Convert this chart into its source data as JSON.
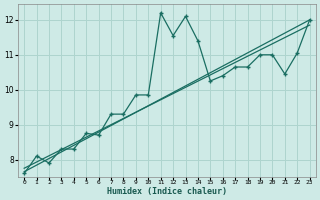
{
  "bg_color": "#ceeae6",
  "grid_color": "#aed4ce",
  "line_color": "#1a6e62",
  "line1_x": [
    0,
    1,
    2,
    3,
    4,
    5,
    6,
    7,
    8,
    9,
    10,
    11,
    12,
    13,
    14,
    15,
    16,
    17,
    18,
    19,
    20,
    21,
    22,
    23
  ],
  "line1_y": [
    7.6,
    8.1,
    7.9,
    8.3,
    8.3,
    8.75,
    8.7,
    9.3,
    9.3,
    9.85,
    9.85,
    12.2,
    11.55,
    12.1,
    11.4,
    10.25,
    10.4,
    10.65,
    10.65,
    11.0,
    11.0,
    10.45,
    11.05,
    12.0
  ],
  "line2_x": [
    0,
    23
  ],
  "line2_y": [
    7.65,
    12.0
  ],
  "line3_x": [
    0,
    23
  ],
  "line3_y": [
    7.75,
    11.85
  ],
  "xlim": [
    -0.5,
    23.5
  ],
  "ylim": [
    7.5,
    12.45
  ],
  "yticks": [
    8,
    9,
    10,
    11,
    12
  ],
  "xticks": [
    0,
    1,
    2,
    3,
    4,
    5,
    6,
    7,
    8,
    9,
    10,
    11,
    12,
    13,
    14,
    15,
    16,
    17,
    18,
    19,
    20,
    21,
    22,
    23
  ],
  "xlabel": "Humidex (Indice chaleur)"
}
